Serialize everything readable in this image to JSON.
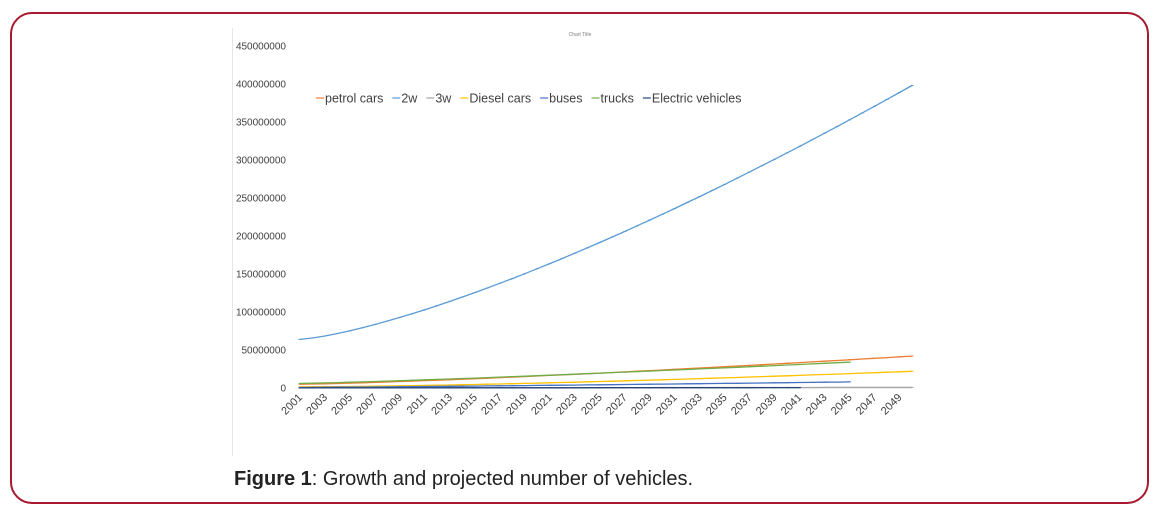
{
  "caption": {
    "label": "Figure 1",
    "text": ": Growth and projected number of vehicles."
  },
  "chart_data": {
    "type": "line",
    "title": "Chart Title",
    "xlabel": "",
    "ylabel": "",
    "ylim": [
      0,
      450000000
    ],
    "yticks": [
      0,
      50000000,
      100000000,
      150000000,
      200000000,
      250000000,
      300000000,
      350000000,
      400000000,
      450000000
    ],
    "ytick_labels": [
      "0",
      "50000000",
      "100000000",
      "150000000",
      "200000000",
      "250000000",
      "300000000",
      "350000000",
      "400000000",
      "450000000"
    ],
    "x_start": 2001,
    "x_end": 2050,
    "xtick_labels": [
      "2001",
      "2003",
      "2005",
      "2007",
      "2009",
      "2011",
      "2013",
      "2015",
      "2017",
      "2019",
      "2021",
      "2023",
      "2025",
      "2027",
      "2029",
      "2031",
      "2033",
      "2035",
      "2037",
      "2039",
      "2041",
      "2043",
      "2045",
      "2047",
      "2049"
    ],
    "legend_position": "top-left",
    "grid": false,
    "series": [
      {
        "name": "petrol cars",
        "color": "#ED7D31",
        "years": [
          2001,
          2050
        ],
        "start": 5000000,
        "end": 42000000,
        "curve": 1.3
      },
      {
        "name": "2w",
        "color": "#5B9BD5",
        "years": [
          2001,
          2050
        ],
        "start": 64000000,
        "end": 398000000,
        "curve": 1.35
      },
      {
        "name": "3w",
        "color": "#A5A5A5",
        "years": [
          2001,
          2050
        ],
        "start": 300000,
        "end": 800000,
        "curve": 1.0
      },
      {
        "name": "Diesel cars",
        "color": "#FFC000",
        "years": [
          2001,
          2050
        ],
        "start": 1500000,
        "end": 22000000,
        "curve": 1.5
      },
      {
        "name": "buses",
        "color": "#4472C4",
        "years": [
          2001,
          2045
        ],
        "start": 700000,
        "end": 8000000,
        "curve": 1.2
      },
      {
        "name": "trucks",
        "color": "#70AD47",
        "years": [
          2001,
          2045
        ],
        "start": 6000000,
        "end": 34000000,
        "curve": 1.2
      },
      {
        "name": "Electric vehicles",
        "color": "#264478",
        "years": [
          2001,
          2041
        ],
        "start": 100000,
        "end": 500000,
        "curve": 1.0
      }
    ]
  }
}
